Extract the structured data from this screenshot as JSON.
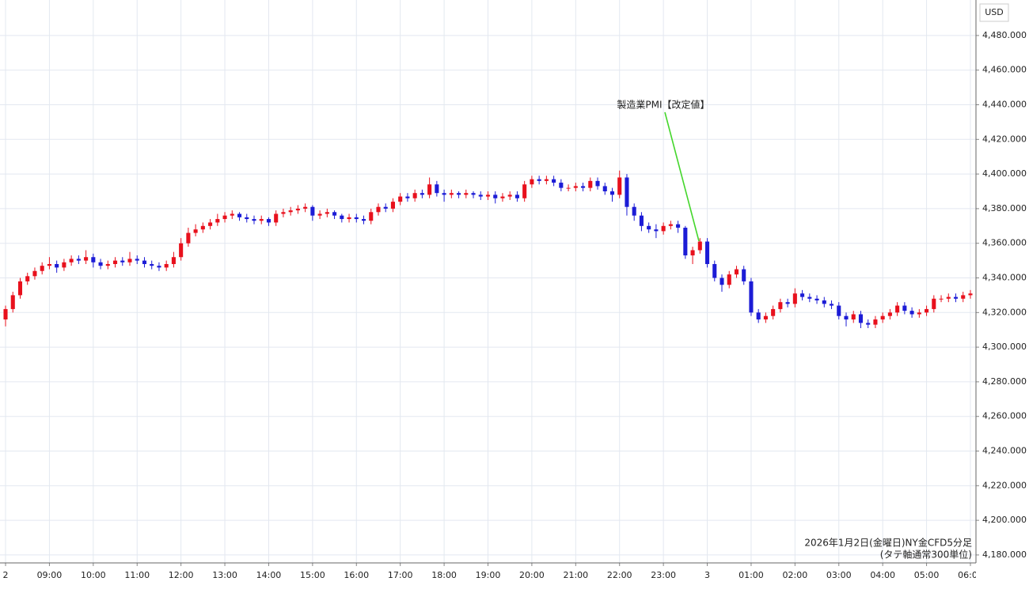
{
  "chart_data": {
    "type": "candlestick",
    "currency": "USD",
    "annotation": "製造業PMI【改定値】",
    "caption": [
      "2026年1月2日(金曜日)NY金CFD5分足",
      "(タテ軸通常300単位)"
    ],
    "up_color": "#e8101c",
    "down_color": "#1c1cd6",
    "grid": true,
    "xlim": [
      -0.76,
      132.76
    ],
    "xticks": [
      {
        "value": 0,
        "label": "2"
      },
      {
        "value": 6,
        "label": "09:00"
      },
      {
        "value": 12,
        "label": "10:00"
      },
      {
        "value": 18,
        "label": "11:00"
      },
      {
        "value": 24,
        "label": "12:00"
      },
      {
        "value": 30,
        "label": "13:00"
      },
      {
        "value": 36,
        "label": "14:00"
      },
      {
        "value": 42,
        "label": "15:00"
      },
      {
        "value": 48,
        "label": "16:00"
      },
      {
        "value": 54,
        "label": "17:00"
      },
      {
        "value": 60,
        "label": "18:00"
      },
      {
        "value": 66,
        "label": "19:00"
      },
      {
        "value": 72,
        "label": "20:00"
      },
      {
        "value": 78,
        "label": "21:00"
      },
      {
        "value": 84,
        "label": "22:00"
      },
      {
        "value": 90,
        "label": "23:00"
      },
      {
        "value": 96,
        "label": "3"
      },
      {
        "value": 102,
        "label": "01:00"
      },
      {
        "value": 108,
        "label": "02:00"
      },
      {
        "value": 114,
        "label": "03:00"
      },
      {
        "value": 120,
        "label": "04:00"
      },
      {
        "value": 126,
        "label": "05:00"
      },
      {
        "value": 132,
        "label": "06:00"
      }
    ],
    "ylim": [
      4175.4,
      4500.5
    ],
    "yticks": [
      {
        "value": 4180,
        "label": "4,180.000"
      },
      {
        "value": 4200,
        "label": "4,200.000"
      },
      {
        "value": 4220,
        "label": "4,220.000"
      },
      {
        "value": 4240,
        "label": "4,240.000"
      },
      {
        "value": 4260,
        "label": "4,260.000"
      },
      {
        "value": 4280,
        "label": "4,280.000"
      },
      {
        "value": 4300,
        "label": "4,300.000"
      },
      {
        "value": 4320,
        "label": "4,320.000"
      },
      {
        "value": 4340,
        "label": "4,340.000"
      },
      {
        "value": 4360,
        "label": "4,360.000"
      },
      {
        "value": 4380,
        "label": "4,380.000"
      },
      {
        "value": 4400,
        "label": "4,400.000"
      },
      {
        "value": 4420,
        "label": "4,420.000"
      },
      {
        "value": 4440,
        "label": "4,440.000"
      },
      {
        "value": 4460,
        "label": "4,460.000"
      },
      {
        "value": 4480,
        "label": "4,480.000"
      }
    ],
    "candles": [
      [
        4316,
        4324,
        4312,
        4322
      ],
      [
        4322,
        4332,
        4320,
        4330
      ],
      [
        4330,
        4340,
        4328,
        4338
      ],
      [
        4338,
        4343,
        4336,
        4341
      ],
      [
        4341,
        4346,
        4339,
        4344
      ],
      [
        4344,
        4349,
        4342,
        4347
      ],
      [
        4347,
        4352,
        4345,
        4348
      ],
      [
        4348,
        4350,
        4343,
        4346
      ],
      [
        4346,
        4351,
        4344,
        4349
      ],
      [
        4349,
        4353,
        4347,
        4351
      ],
      [
        4351,
        4353,
        4348,
        4350
      ],
      [
        4350,
        4356,
        4348,
        4352
      ],
      [
        4352,
        4354,
        4346,
        4349
      ],
      [
        4349,
        4351,
        4345,
        4347
      ],
      [
        4347,
        4350,
        4345,
        4348
      ],
      [
        4348,
        4352,
        4346,
        4350
      ],
      [
        4350,
        4352,
        4347,
        4349
      ],
      [
        4349,
        4355,
        4347,
        4351
      ],
      [
        4351,
        4353,
        4348,
        4350
      ],
      [
        4350,
        4352,
        4346,
        4348
      ],
      [
        4348,
        4350,
        4345,
        4347
      ],
      [
        4347,
        4349,
        4344,
        4346
      ],
      [
        4346,
        4350,
        4344,
        4348
      ],
      [
        4348,
        4355,
        4346,
        4352
      ],
      [
        4352,
        4363,
        4350,
        4360
      ],
      [
        4360,
        4369,
        4358,
        4366
      ],
      [
        4366,
        4371,
        4364,
        4368
      ],
      [
        4368,
        4372,
        4366,
        4370
      ],
      [
        4370,
        4374,
        4368,
        4372
      ],
      [
        4372,
        4377,
        4370,
        4374
      ],
      [
        4374,
        4378,
        4372,
        4376
      ],
      [
        4376,
        4379,
        4374,
        4377
      ],
      [
        4377,
        4378,
        4373,
        4375
      ],
      [
        4375,
        4377,
        4372,
        4374
      ],
      [
        4374,
        4376,
        4371,
        4373
      ],
      [
        4373,
        4376,
        4371,
        4374
      ],
      [
        4374,
        4375,
        4370,
        4372
      ],
      [
        4372,
        4379,
        4370,
        4377
      ],
      [
        4377,
        4380,
        4375,
        4378
      ],
      [
        4378,
        4381,
        4376,
        4379
      ],
      [
        4379,
        4382,
        4377,
        4380
      ],
      [
        4380,
        4383,
        4378,
        4381
      ],
      [
        4381,
        4382,
        4373,
        4376
      ],
      [
        4376,
        4379,
        4374,
        4377
      ],
      [
        4377,
        4380,
        4375,
        4378
      ],
      [
        4378,
        4379,
        4374,
        4376
      ],
      [
        4376,
        4377,
        4372,
        4374
      ],
      [
        4374,
        4377,
        4372,
        4375
      ],
      [
        4375,
        4377,
        4372,
        4374
      ],
      [
        4374,
        4376,
        4371,
        4373
      ],
      [
        4373,
        4380,
        4371,
        4378
      ],
      [
        4378,
        4383,
        4376,
        4381
      ],
      [
        4381,
        4383,
        4378,
        4380
      ],
      [
        4380,
        4386,
        4378,
        4384
      ],
      [
        4384,
        4389,
        4382,
        4387
      ],
      [
        4387,
        4389,
        4384,
        4386
      ],
      [
        4386,
        4391,
        4384,
        4389
      ],
      [
        4389,
        4391,
        4386,
        4388
      ],
      [
        4388,
        4398,
        4386,
        4394
      ],
      [
        4394,
        4396,
        4387,
        4389
      ],
      [
        4389,
        4391,
        4384,
        4388
      ],
      [
        4388,
        4391,
        4386,
        4389
      ],
      [
        4389,
        4390,
        4386,
        4388
      ],
      [
        4388,
        4391,
        4386,
        4389
      ],
      [
        4389,
        4390,
        4386,
        4388
      ],
      [
        4388,
        4390,
        4385,
        4387
      ],
      [
        4387,
        4390,
        4385,
        4388
      ],
      [
        4388,
        4390,
        4383,
        4386
      ],
      [
        4386,
        4389,
        4384,
        4387
      ],
      [
        4387,
        4390,
        4385,
        4388
      ],
      [
        4388,
        4390,
        4384,
        4386
      ],
      [
        4386,
        4396,
        4384,
        4394
      ],
      [
        4394,
        4399,
        4392,
        4397
      ],
      [
        4397,
        4399,
        4394,
        4396
      ],
      [
        4396,
        4399,
        4394,
        4397
      ],
      [
        4397,
        4399,
        4393,
        4395
      ],
      [
        4395,
        4397,
        4390,
        4392
      ],
      [
        4392,
        4394,
        4390,
        4392
      ],
      [
        4392,
        4395,
        4390,
        4393
      ],
      [
        4393,
        4395,
        4390,
        4392
      ],
      [
        4392,
        4398,
        4390,
        4396
      ],
      [
        4396,
        4398,
        4391,
        4393
      ],
      [
        4393,
        4395,
        4388,
        4390
      ],
      [
        4390,
        4392,
        4384,
        4388
      ],
      [
        4388,
        4402,
        4386,
        4398
      ],
      [
        4398,
        4400,
        4376,
        4381
      ],
      [
        4381,
        4383,
        4373,
        4376
      ],
      [
        4376,
        4378,
        4367,
        4370
      ],
      [
        4370,
        4372,
        4366,
        4368
      ],
      [
        4368,
        4371,
        4363,
        4367
      ],
      [
        4367,
        4372,
        4365,
        4370
      ],
      [
        4370,
        4373,
        4368,
        4371
      ],
      [
        4371,
        4373,
        4366,
        4369
      ],
      [
        4369,
        4370,
        4351,
        4353
      ],
      [
        4353,
        4358,
        4348,
        4356
      ],
      [
        4356,
        4363,
        4354,
        4361
      ],
      [
        4361,
        4363,
        4346,
        4348
      ],
      [
        4348,
        4350,
        4338,
        4340
      ],
      [
        4340,
        4342,
        4332,
        4336
      ],
      [
        4336,
        4344,
        4334,
        4342
      ],
      [
        4342,
        4347,
        4340,
        4345
      ],
      [
        4345,
        4347,
        4336,
        4338
      ],
      [
        4338,
        4340,
        4318,
        4320
      ],
      [
        4320,
        4322,
        4314,
        4316
      ],
      [
        4316,
        4320,
        4314,
        4318
      ],
      [
        4318,
        4324,
        4316,
        4322
      ],
      [
        4322,
        4328,
        4320,
        4326
      ],
      [
        4326,
        4328,
        4323,
        4325
      ],
      [
        4325,
        4334,
        4323,
        4331
      ],
      [
        4331,
        4333,
        4327,
        4329
      ],
      [
        4329,
        4331,
        4326,
        4328
      ],
      [
        4328,
        4330,
        4325,
        4327
      ],
      [
        4327,
        4329,
        4323,
        4325
      ],
      [
        4325,
        4327,
        4322,
        4324
      ],
      [
        4324,
        4326,
        4316,
        4318
      ],
      [
        4318,
        4320,
        4312,
        4316
      ],
      [
        4316,
        4321,
        4314,
        4319
      ],
      [
        4319,
        4321,
        4311,
        4314
      ],
      [
        4314,
        4316,
        4311,
        4313
      ],
      [
        4313,
        4318,
        4311,
        4316
      ],
      [
        4316,
        4320,
        4314,
        4318
      ],
      [
        4318,
        4322,
        4316,
        4320
      ],
      [
        4320,
        4326,
        4318,
        4324
      ],
      [
        4324,
        4326,
        4319,
        4321
      ],
      [
        4321,
        4323,
        4317,
        4319
      ],
      [
        4319,
        4322,
        4317,
        4320
      ],
      [
        4320,
        4324,
        4318,
        4322
      ],
      [
        4322,
        4330,
        4320,
        4328
      ],
      [
        4328,
        4330,
        4326,
        4328
      ],
      [
        4328,
        4331,
        4326,
        4329
      ],
      [
        4329,
        4331,
        4326,
        4328
      ],
      [
        4328,
        4332,
        4326,
        4330
      ],
      [
        4330,
        4333,
        4328,
        4331
      ]
    ]
  }
}
